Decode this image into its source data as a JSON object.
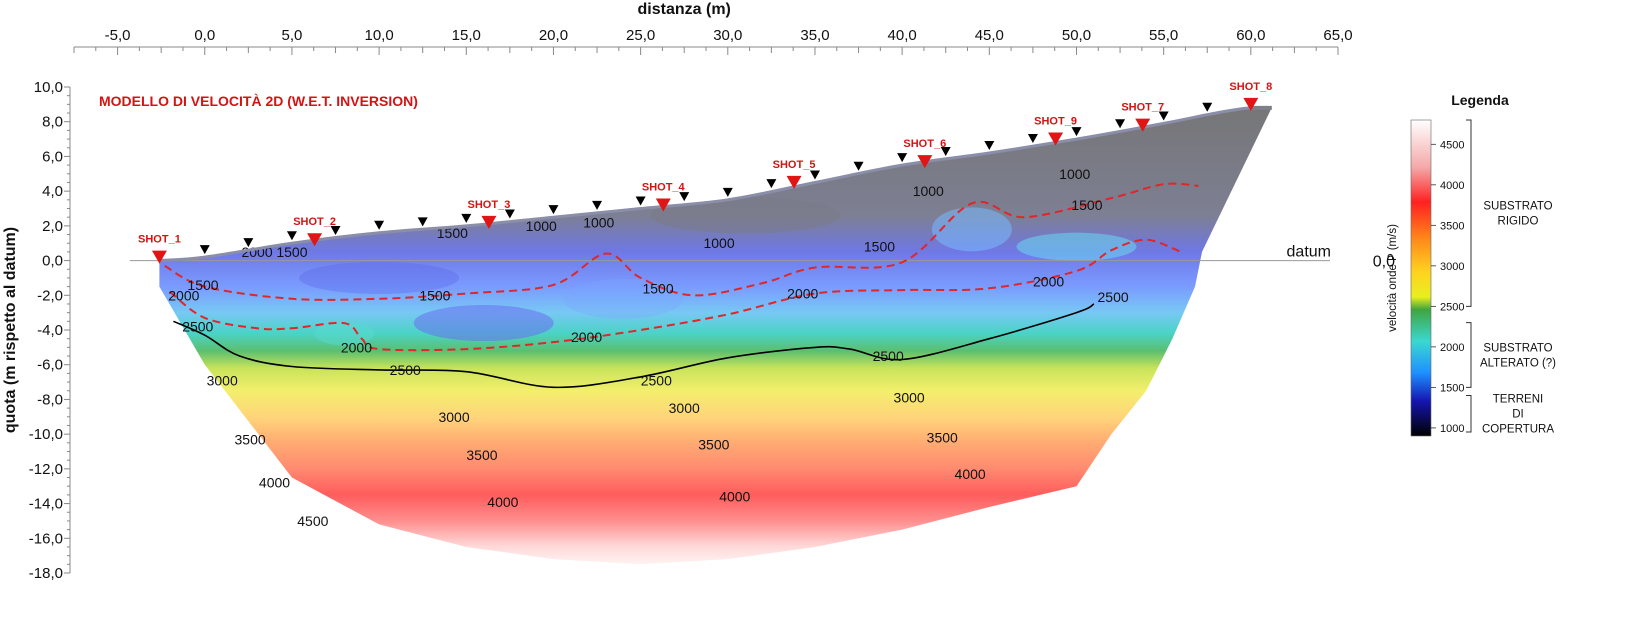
{
  "chart_data": {
    "type": "heatmap",
    "title": "MODELLO DI VELOCITÀ 2D (W.E.T. INVERSION)",
    "xlabel": "distanza (m)",
    "ylabel": "quota (m rispetto al datum)",
    "xlim": [
      -7.5,
      65
    ],
    "ylim": [
      -18,
      10
    ],
    "x_ticks": [
      "-5,0",
      "0,0",
      "5,0",
      "10,0",
      "15,0",
      "20,0",
      "25,0",
      "30,0",
      "35,0",
      "40,0",
      "45,0",
      "50,0",
      "55,0",
      "60,0",
      "65,0"
    ],
    "y_ticks": [
      "10,0",
      "8,0",
      "6,0",
      "4,0",
      "2,0",
      "0,0",
      "-2,0",
      "-4,0",
      "-6,0",
      "-8,0",
      "-10,0",
      "-12,0",
      "-14,0",
      "-16,0",
      "-18,0"
    ],
    "datum_label": "datum",
    "datum_value": "0,0",
    "grid": false,
    "colorbar": {
      "label": "velocità onde P (m/s)",
      "ticks": [
        "4500",
        "4000",
        "3500",
        "3000",
        "2500",
        "2000",
        "1500",
        "1000"
      ],
      "range": [
        900,
        4800
      ]
    },
    "legend_title": "Legenda",
    "legend_classes": [
      {
        "lines": [
          "SUBSTRATO",
          "RIGIDO"
        ]
      },
      {
        "lines": [
          "SUBSTRATO",
          "ALTERATO (?)"
        ]
      },
      {
        "lines": [
          "TERRENI",
          "DI",
          "COPERTURA"
        ]
      }
    ],
    "surface_profile": {
      "x": [
        -2.6,
        0,
        5,
        10,
        15,
        20,
        25,
        30,
        35,
        40,
        45,
        50,
        55,
        58,
        60,
        61.2
      ],
      "y": [
        0.0,
        0.2,
        1.0,
        1.6,
        2.0,
        2.5,
        3.0,
        3.5,
        4.5,
        5.5,
        6.2,
        7.0,
        7.9,
        8.5,
        8.8,
        8.8
      ]
    },
    "bottom_profile": {
      "x": [
        -2.6,
        0,
        5,
        10,
        15,
        20,
        25,
        30,
        35,
        40,
        45,
        50,
        52,
        54,
        55.5,
        56.8,
        57.2
      ],
      "y": [
        -1.5,
        -6.0,
        -12.5,
        -15.2,
        -16.5,
        -17.2,
        -17.5,
        -17.2,
        -16.5,
        -15.5,
        -14.2,
        -13.0,
        -10.0,
        -7.5,
        -4.5,
        -1.5,
        0.5
      ]
    },
    "contours": [
      {
        "value": 1500,
        "x": [
          -2.3,
          0,
          5,
          10,
          15,
          20,
          23,
          25,
          28,
          32,
          35,
          40,
          44,
          47,
          52,
          55,
          57
        ],
        "y": [
          -0.3,
          -1.5,
          -2.2,
          -2.2,
          -1.9,
          -1.4,
          0.4,
          -1.0,
          -2.0,
          -1.3,
          -0.4,
          -0.1,
          3.3,
          2.5,
          3.6,
          4.4,
          4.3
        ]
      },
      {
        "value": 2000,
        "x": [
          -2.0,
          0,
          3,
          5,
          8,
          9,
          10,
          15,
          20,
          25,
          30,
          35,
          40,
          45,
          50,
          52,
          54,
          56
        ],
        "y": [
          -1.8,
          -3.3,
          -3.9,
          -3.9,
          -3.6,
          -4.5,
          -5.1,
          -5.1,
          -4.7,
          -4.0,
          -3.1,
          -1.9,
          -1.7,
          -1.6,
          -0.6,
          0.6,
          1.2,
          0.5
        ]
      },
      {
        "value": 2500,
        "x": [
          -1.8,
          0,
          2,
          5,
          10,
          15,
          20,
          25,
          30,
          35,
          37,
          40,
          45,
          50,
          51
        ],
        "y": [
          -3.5,
          -4.3,
          -5.5,
          -6.1,
          -6.3,
          -6.4,
          -7.3,
          -6.7,
          -5.6,
          -5.0,
          -5.1,
          -5.7,
          -4.5,
          -3.0,
          -2.5
        ]
      }
    ],
    "contour_labels": [
      {
        "text": "1000",
        "x": 19.3,
        "y": 2.0
      },
      {
        "text": "1000",
        "x": 22.6,
        "y": 2.2
      },
      {
        "text": "1000",
        "x": 29.5,
        "y": 1.0
      },
      {
        "text": "1000",
        "x": 41.5,
        "y": 4.0
      },
      {
        "text": "1000",
        "x": 49.9,
        "y": 5.0
      },
      {
        "text": "1500",
        "x": -0.1,
        "y": -1.4
      },
      {
        "text": "1500",
        "x": 5.0,
        "y": 0.5
      },
      {
        "text": "1500",
        "x": 14.2,
        "y": 1.6
      },
      {
        "text": "1500",
        "x": 13.2,
        "y": -2.0
      },
      {
        "text": "1500",
        "x": 26.0,
        "y": -1.6
      },
      {
        "text": "1500",
        "x": 38.7,
        "y": 0.8
      },
      {
        "text": "1500",
        "x": 50.6,
        "y": 3.2
      },
      {
        "text": "2000",
        "x": 3.0,
        "y": 0.5
      },
      {
        "text": "2000",
        "x": -1.2,
        "y": -2.0
      },
      {
        "text": "2000",
        "x": 8.7,
        "y": -5.0
      },
      {
        "text": "2000",
        "x": 21.9,
        "y": -4.4
      },
      {
        "text": "2000",
        "x": 34.3,
        "y": -1.9
      },
      {
        "text": "2000",
        "x": 48.4,
        "y": -1.2
      },
      {
        "text": "2500",
        "x": -0.4,
        "y": -3.8
      },
      {
        "text": "2500",
        "x": 11.5,
        "y": -6.3
      },
      {
        "text": "2500",
        "x": 25.9,
        "y": -6.9
      },
      {
        "text": "2500",
        "x": 39.2,
        "y": -5.5
      },
      {
        "text": "2500",
        "x": 52.1,
        "y": -2.1
      },
      {
        "text": "3000",
        "x": 1.0,
        "y": -6.9
      },
      {
        "text": "3000",
        "x": 14.3,
        "y": -9.0
      },
      {
        "text": "3000",
        "x": 27.5,
        "y": -8.5
      },
      {
        "text": "3000",
        "x": 40.4,
        "y": -7.9
      },
      {
        "text": "3500",
        "x": 2.6,
        "y": -10.3
      },
      {
        "text": "3500",
        "x": 15.9,
        "y": -11.2
      },
      {
        "text": "3500",
        "x": 29.2,
        "y": -10.6
      },
      {
        "text": "3500",
        "x": 42.3,
        "y": -10.2
      },
      {
        "text": "4000",
        "x": 4.0,
        "y": -12.8
      },
      {
        "text": "4000",
        "x": 17.1,
        "y": -13.9
      },
      {
        "text": "4000",
        "x": 30.4,
        "y": -13.6
      },
      {
        "text": "4000",
        "x": 43.9,
        "y": -12.3
      },
      {
        "text": "4500",
        "x": 6.2,
        "y": -15.0
      }
    ],
    "shots": [
      {
        "name": "SHOT_1",
        "x": -2.6,
        "y": 0.0
      },
      {
        "name": "SHOT_2",
        "x": 6.3,
        "y": 1.0
      },
      {
        "name": "SHOT_3",
        "x": 16.3,
        "y": 2.0
      },
      {
        "name": "SHOT_4",
        "x": 26.3,
        "y": 3.0
      },
      {
        "name": "SHOT_5",
        "x": 33.8,
        "y": 4.3
      },
      {
        "name": "SHOT_6",
        "x": 41.3,
        "y": 5.5
      },
      {
        "name": "SHOT_9",
        "x": 48.8,
        "y": 6.8
      },
      {
        "name": "SHOT_7",
        "x": 53.8,
        "y": 7.6
      },
      {
        "name": "SHOT_8",
        "x": 60.0,
        "y": 8.8
      }
    ],
    "geophones_x": [
      0,
      2.5,
      5,
      7.5,
      10,
      12.5,
      15,
      17.5,
      20,
      22.5,
      25,
      27.5,
      30,
      32.5,
      35,
      37.5,
      40,
      42.5,
      45,
      47.5,
      50,
      52.5,
      55,
      57.5
    ]
  }
}
